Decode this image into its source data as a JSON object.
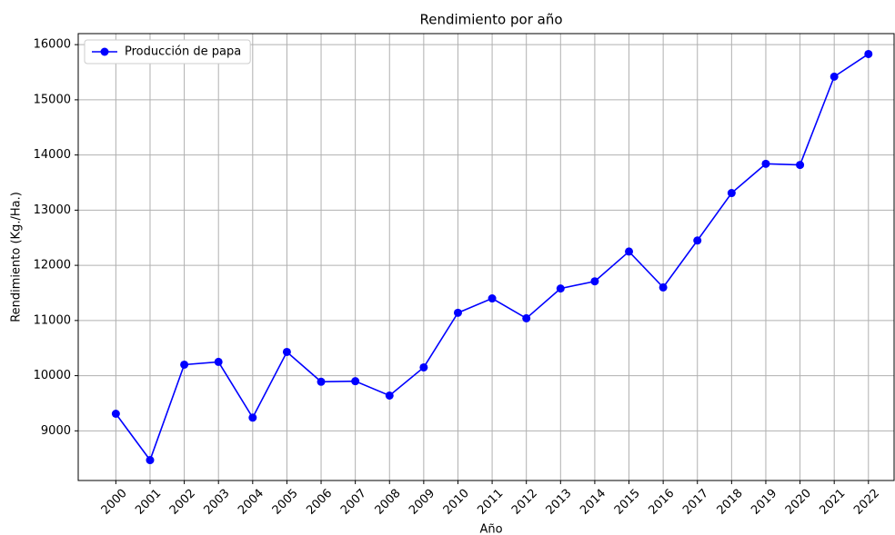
{
  "chart_data": {
    "type": "line",
    "title": "Rendimiento por año",
    "xlabel": "Año",
    "ylabel": "Rendimiento (Kg./Ha.)",
    "x": [
      2000,
      2001,
      2002,
      2003,
      2004,
      2005,
      2006,
      2007,
      2008,
      2009,
      2010,
      2011,
      2012,
      2013,
      2014,
      2015,
      2016,
      2017,
      2018,
      2019,
      2020,
      2021,
      2022
    ],
    "series": [
      {
        "name": "Producción de papa",
        "color": "#0000ff",
        "values": [
          9310,
          8470,
          10200,
          10250,
          9240,
          10430,
          9890,
          9900,
          9640,
          10150,
          11140,
          11400,
          11040,
          11580,
          11710,
          12250,
          11600,
          12450,
          13310,
          13840,
          13820,
          15420,
          15830
        ]
      }
    ],
    "xlim": [
      1998.9,
      2022.75
    ],
    "xticks": [
      2000,
      2001,
      2002,
      2003,
      2004,
      2005,
      2006,
      2007,
      2008,
      2009,
      2010,
      2011,
      2012,
      2013,
      2014,
      2015,
      2016,
      2017,
      2018,
      2019,
      2020,
      2021,
      2022
    ],
    "ylim": [
      8100,
      16200
    ],
    "yticks": [
      9000,
      10000,
      11000,
      12000,
      13000,
      14000,
      15000,
      16000
    ],
    "grid": true,
    "legend": "upper left"
  }
}
